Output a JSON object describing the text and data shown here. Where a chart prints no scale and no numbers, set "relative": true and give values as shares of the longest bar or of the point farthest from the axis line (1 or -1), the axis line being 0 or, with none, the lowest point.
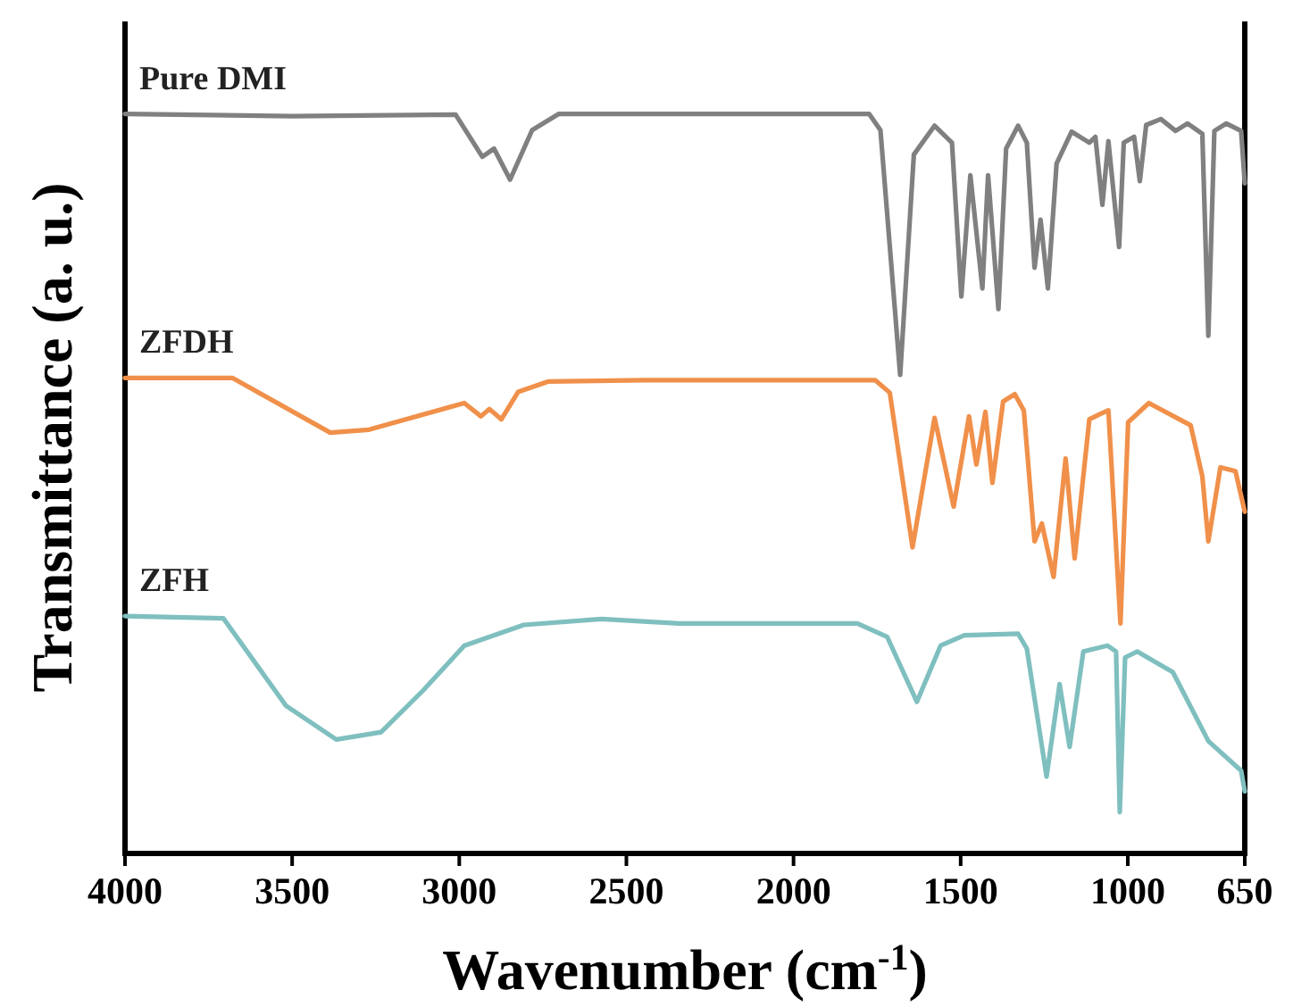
{
  "chart_data": {
    "type": "line",
    "xlabel": "Wavenumber (cm$^{-1}$)",
    "ylabel": "Transmittance (a. u.)",
    "relative": true,
    "xlim": [
      4000,
      650
    ],
    "xticks": [
      4000,
      3500,
      3000,
      2500,
      2000,
      1500,
      1000,
      650
    ],
    "grid": false,
    "marker": "none",
    "line_style": "solid",
    "series": [
      {
        "name": "Pure DMI",
        "color": "#808080",
        "x": [
          4000,
          3500,
          3011,
          2931,
          2896,
          2848,
          2782,
          2702,
          2500,
          2000,
          1774,
          1740,
          1681,
          1640,
          1578,
          1526,
          1498,
          1471,
          1435,
          1418,
          1387,
          1364,
          1328,
          1302,
          1279,
          1261,
          1239,
          1213,
          1168,
          1115,
          1097,
          1076,
          1058,
          1026,
          1012,
          981,
          964,
          945,
          901,
          857,
          821,
          777,
          759,
          741,
          705,
          661,
          650
        ],
        "values": [
          1.0,
          0.997,
          0.999,
          0.942,
          0.953,
          0.911,
          0.978,
          1.0,
          1.0,
          1.0,
          1.0,
          0.978,
          0.647,
          0.945,
          0.984,
          0.961,
          0.753,
          0.917,
          0.764,
          0.917,
          0.736,
          0.953,
          0.984,
          0.961,
          0.792,
          0.857,
          0.764,
          0.933,
          0.976,
          0.961,
          0.969,
          0.877,
          0.963,
          0.82,
          0.961,
          0.969,
          0.909,
          0.985,
          0.993,
          0.977,
          0.987,
          0.973,
          0.7,
          0.977,
          0.987,
          0.977,
          0.906
        ]
      },
      {
        "name": "ZFDH",
        "color": "#f0904a",
        "x": [
          4000,
          3679,
          3386,
          3270,
          2985,
          2935,
          2910,
          2874,
          2824,
          2735,
          2451,
          1756,
          1712,
          1644,
          1578,
          1521,
          1475,
          1453,
          1426,
          1405,
          1373,
          1338,
          1311,
          1279,
          1257,
          1222,
          1186,
          1159,
          1115,
          1079,
          1058,
          1022,
          999,
          937,
          812,
          777,
          759,
          723,
          678,
          650
        ],
        "values": [
          0.643,
          0.643,
          0.569,
          0.573,
          0.609,
          0.591,
          0.601,
          0.587,
          0.624,
          0.638,
          0.64,
          0.64,
          0.623,
          0.414,
          0.589,
          0.469,
          0.591,
          0.526,
          0.597,
          0.501,
          0.611,
          0.621,
          0.599,
          0.422,
          0.446,
          0.374,
          0.534,
          0.399,
          0.587,
          0.595,
          0.599,
          0.311,
          0.583,
          0.609,
          0.579,
          0.51,
          0.422,
          0.522,
          0.517,
          0.462
        ]
      },
      {
        "name": "ZFH",
        "color": "#7fbfbf",
        "x": [
          4000,
          3706,
          3519,
          3368,
          3234,
          3109,
          2985,
          2807,
          2575,
          2344,
          1809,
          1720,
          1631,
          1560,
          1489,
          1328,
          1302,
          1243,
          1204,
          1174,
          1133,
          1061,
          1035,
          1024,
          1008,
          972,
          865,
          759,
          661,
          650
        ],
        "values": [
          0.321,
          0.318,
          0.2,
          0.154,
          0.164,
          0.22,
          0.281,
          0.309,
          0.317,
          0.311,
          0.311,
          0.293,
          0.205,
          0.281,
          0.295,
          0.297,
          0.277,
          0.104,
          0.229,
          0.144,
          0.273,
          0.281,
          0.273,
          0.056,
          0.265,
          0.273,
          0.245,
          0.152,
          0.112,
          0.084
        ]
      }
    ]
  }
}
